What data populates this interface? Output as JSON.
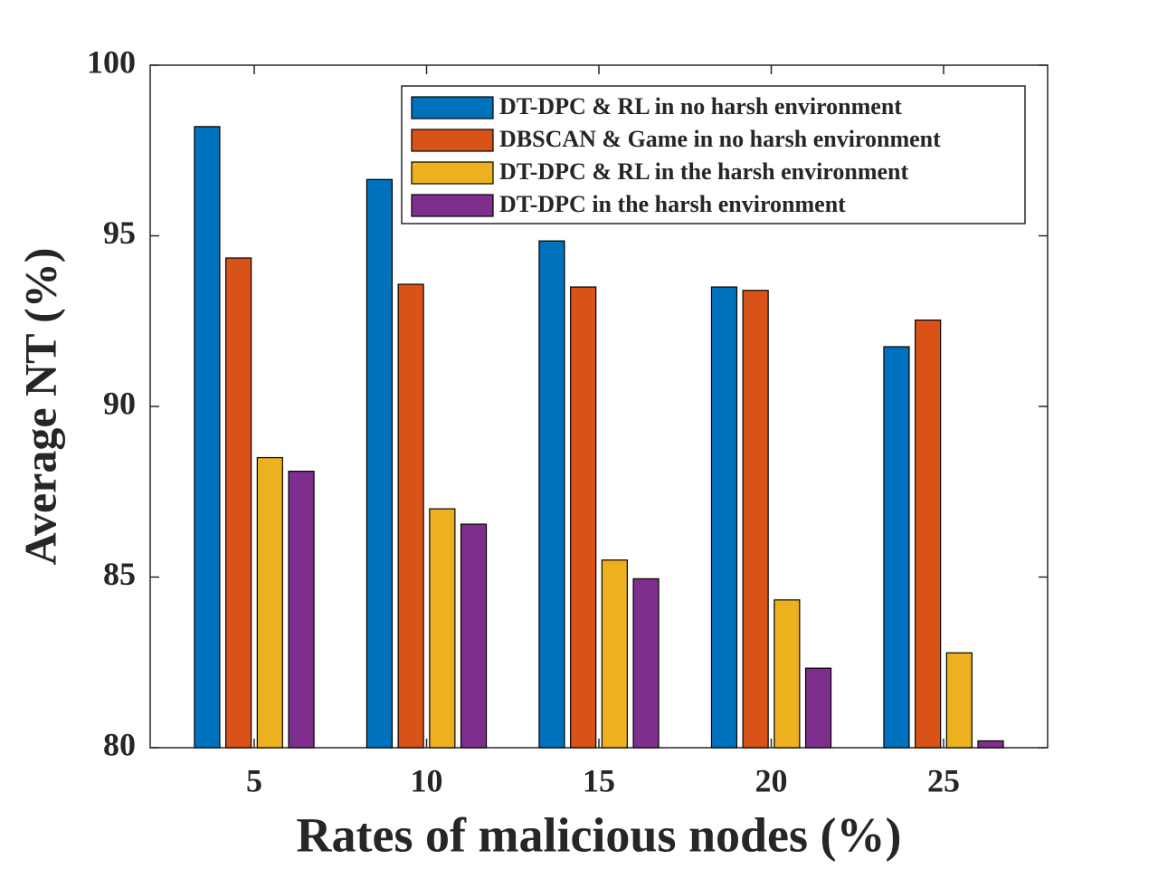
{
  "chart_data": {
    "type": "bar",
    "x_label": "Rates of malicious nodes (%)",
    "y_label": "Average NT (%)",
    "categories": [
      "5",
      "10",
      "15",
      "20",
      "25"
    ],
    "series": [
      {
        "name": "DT-DPC & RL in no harsh environment",
        "color": "#0072BD",
        "values": [
          98.2,
          96.65,
          94.85,
          93.5,
          91.75
        ]
      },
      {
        "name": "DBSCAN & Game in no harsh environment",
        "color": "#D95319",
        "values": [
          94.35,
          93.58,
          93.5,
          93.4,
          92.53
        ]
      },
      {
        "name": "DT-DPC & RL in the harsh environment",
        "color": "#EDB120",
        "values": [
          88.5,
          87.0,
          85.5,
          84.33,
          82.78
        ]
      },
      {
        "name": "DT-DPC in the harsh environment",
        "color": "#7E2F8E",
        "values": [
          88.1,
          86.55,
          84.95,
          82.33,
          80.2
        ]
      }
    ],
    "ylim": [
      80,
      100
    ],
    "yticks": [
      80,
      85,
      90,
      95,
      100
    ],
    "legend": "top-right"
  }
}
